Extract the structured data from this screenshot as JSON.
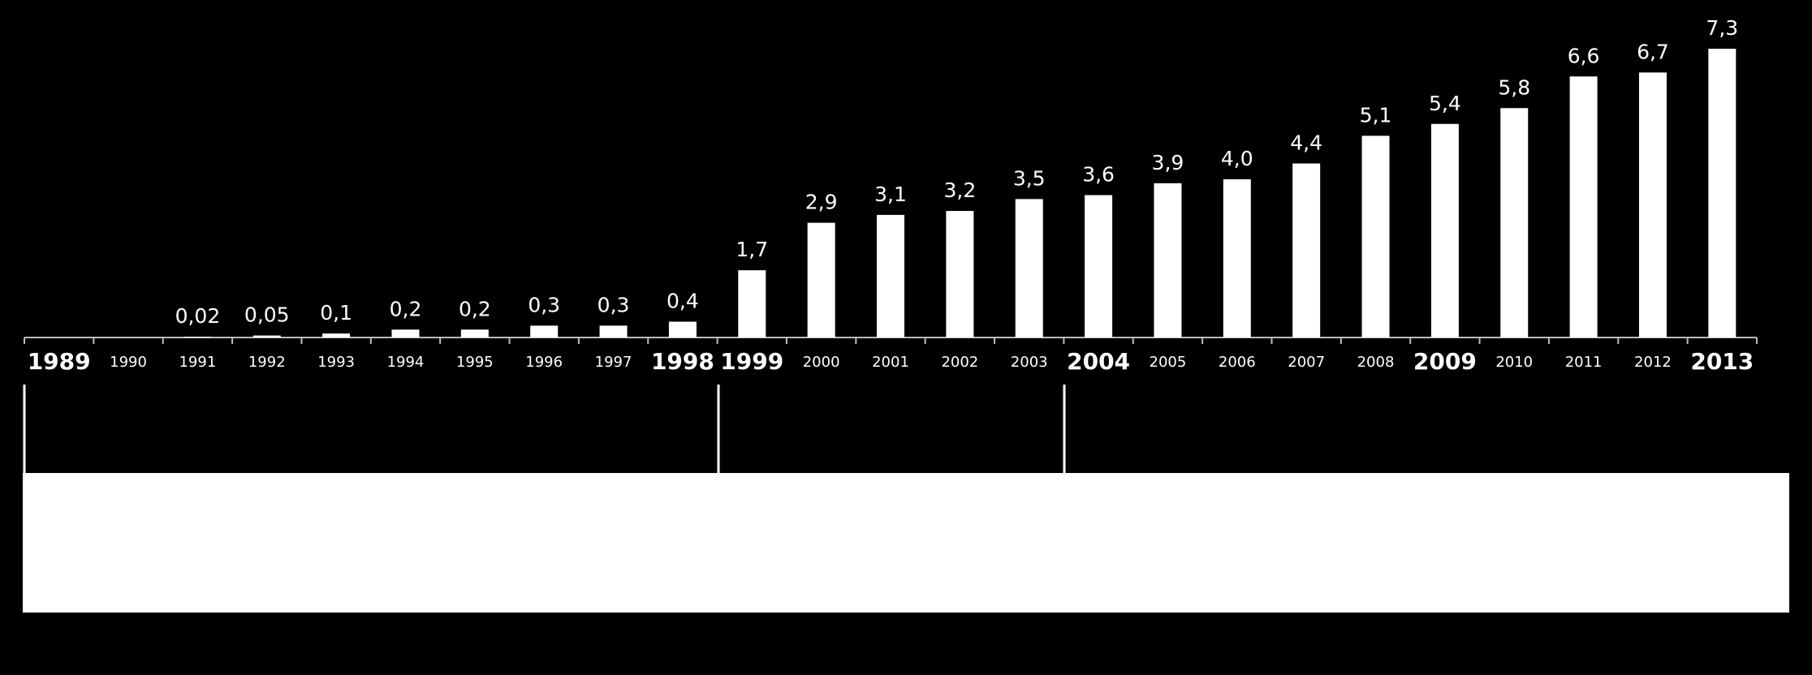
{
  "chart_data": {
    "type": "bar",
    "categories": [
      "1989",
      "1990",
      "1991",
      "1992",
      "1993",
      "1994",
      "1995",
      "1996",
      "1997",
      "1998",
      "1999",
      "2000",
      "2001",
      "2002",
      "2003",
      "2004",
      "2005",
      "2006",
      "2007",
      "2008",
      "2009",
      "2010",
      "2011",
      "2012",
      "2013"
    ],
    "values": [
      null,
      null,
      0.02,
      0.05,
      0.1,
      0.2,
      0.2,
      0.3,
      0.3,
      0.4,
      1.7,
      2.9,
      3.1,
      3.2,
      3.5,
      3.6,
      3.9,
      4.0,
      4.4,
      5.1,
      5.4,
      5.8,
      6.6,
      6.7,
      7.3
    ],
    "value_labels": [
      null,
      null,
      "0,02",
      "0,05",
      "0,1",
      "0,2",
      "0,2",
      "0,3",
      "0,3",
      "0,4",
      "1,7",
      "2,9",
      "3,1",
      "3,2",
      "3,5",
      "3,6",
      "3,9",
      "4,0",
      "4,4",
      "5,1",
      "5,4",
      "5,8",
      "6,6",
      "6,7",
      "7,3"
    ],
    "color": "#ffffff"
  }
}
